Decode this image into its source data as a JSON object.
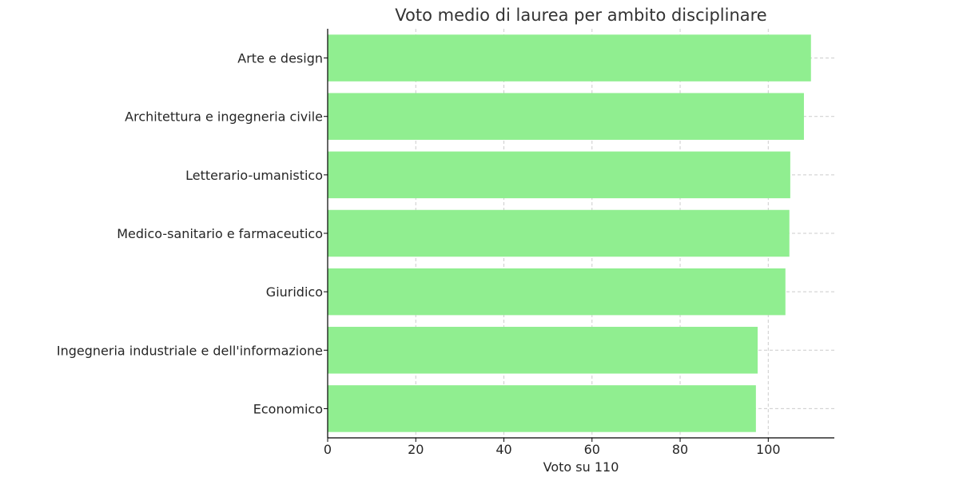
{
  "chart_data": {
    "type": "bar",
    "orientation": "horizontal",
    "title": "Voto medio di laurea per ambito disciplinare",
    "xlabel": "Voto su 110",
    "ylabel": "",
    "categories": [
      "Arte e design",
      "Architettura e ingegneria civile",
      "Letterario-umanistico",
      "Medico-sanitario e farmaceutico",
      "Giuridico",
      "Ingegneria industriale e dell'informazione",
      "Economico"
    ],
    "values": [
      109.7,
      108.1,
      105.0,
      104.8,
      103.9,
      97.6,
      97.2
    ],
    "xlim": [
      0,
      115
    ],
    "xticks": [
      0,
      20,
      40,
      60,
      80,
      100
    ],
    "grid": true,
    "bar_color": "#90ee90"
  }
}
